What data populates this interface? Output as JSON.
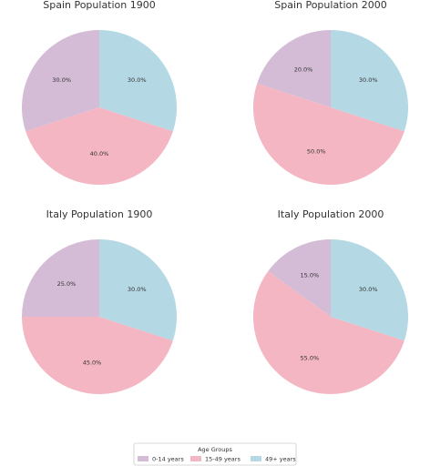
{
  "chart_data": [
    {
      "type": "pie",
      "title": "Spain Population 1900",
      "categories": [
        "0-14 years",
        "15-49 years",
        "49+ years"
      ],
      "values": [
        30,
        40,
        30
      ],
      "value_labels": [
        "30.0%",
        "40.0%",
        "30.0%"
      ],
      "colors": [
        "#d4bcd6",
        "#f4b6c2",
        "#b4d8e4"
      ]
    },
    {
      "type": "pie",
      "title": "Spain Population 2000",
      "categories": [
        "0-14 years",
        "15-49 years",
        "49+ years"
      ],
      "values": [
        20,
        50,
        30
      ],
      "value_labels": [
        "20.0%",
        "50.0%",
        "30.0%"
      ],
      "colors": [
        "#d4bcd6",
        "#f4b6c2",
        "#b4d8e4"
      ]
    },
    {
      "type": "pie",
      "title": "Italy Population 1900",
      "categories": [
        "0-14 years",
        "15-49 years",
        "49+ years"
      ],
      "values": [
        25,
        45,
        30
      ],
      "value_labels": [
        "25.0%",
        "45.0%",
        "30.0%"
      ],
      "colors": [
        "#d4bcd6",
        "#f4b6c2",
        "#b4d8e4"
      ]
    },
    {
      "type": "pie",
      "title": "Italy Population 2000",
      "categories": [
        "0-14 years",
        "15-49 years",
        "49+ years"
      ],
      "values": [
        15,
        55,
        30
      ],
      "value_labels": [
        "15.0%",
        "55.0%",
        "30.0%"
      ],
      "colors": [
        "#d4bcd6",
        "#f4b6c2",
        "#b4d8e4"
      ]
    }
  ],
  "legend_title": "Age Groups"
}
